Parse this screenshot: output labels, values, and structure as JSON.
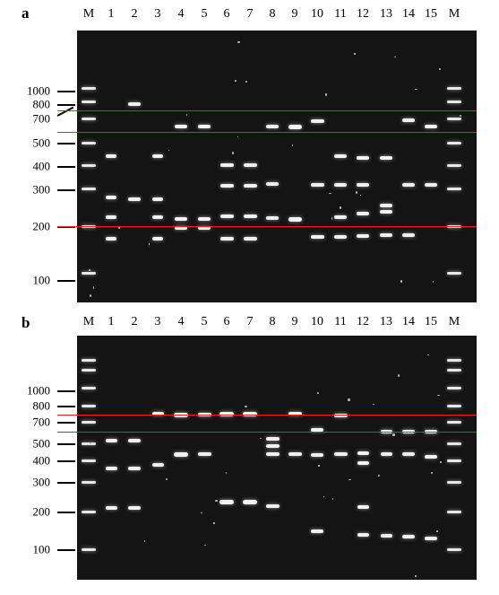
{
  "panels": [
    {
      "letter": "a",
      "lane_labels": [
        "M",
        "1",
        "2",
        "3",
        "4",
        "5",
        "6",
        "7",
        "8",
        "9",
        "10",
        "11",
        "12",
        "13",
        "14",
        "15",
        "M"
      ],
      "size_labels": [
        "1000",
        "800",
        "700",
        "500",
        "400",
        "300",
        "200",
        "100"
      ]
    },
    {
      "letter": "b",
      "lane_labels": [
        "M",
        "1",
        "2",
        "3",
        "4",
        "5",
        "6",
        "7",
        "8",
        "9",
        "10",
        "11",
        "12",
        "13",
        "14",
        "15",
        "M"
      ],
      "size_labels": [
        "1000",
        "800",
        "700",
        "500",
        "400",
        "300",
        "200",
        "100"
      ]
    }
  ],
  "colors": {
    "gel": "#141414",
    "band": "#f2f2f2",
    "guide_line": "#ff1a1a",
    "background": "#ffffff"
  }
}
